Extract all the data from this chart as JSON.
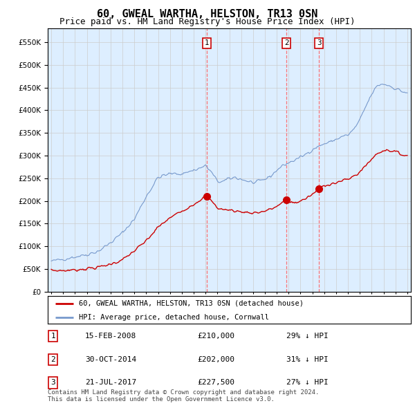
{
  "title": "60, GWEAL WARTHA, HELSTON, TR13 0SN",
  "subtitle": "Price paid vs. HM Land Registry's House Price Index (HPI)",
  "title_fontsize": 11,
  "subtitle_fontsize": 9,
  "yticks": [
    0,
    50000,
    100000,
    150000,
    200000,
    250000,
    300000,
    350000,
    400000,
    450000,
    500000,
    550000
  ],
  "ylim": [
    0,
    580000
  ],
  "xlim_start": 1994.7,
  "xlim_end": 2025.3,
  "grid_color": "#cccccc",
  "bg_color": "#ddeeff",
  "red_line_color": "#cc0000",
  "blue_line_color": "#7799cc",
  "vline_color": "#ff6666",
  "marker_color": "#cc0000",
  "transactions": [
    {
      "label": "1",
      "date": 2008.12,
      "price": 210000,
      "desc": "15-FEB-2008",
      "pct": "29% ↓ HPI"
    },
    {
      "label": "2",
      "date": 2014.83,
      "price": 202000,
      "desc": "30-OCT-2014",
      "pct": "31% ↓ HPI"
    },
    {
      "label": "3",
      "date": 2017.55,
      "price": 227500,
      "desc": "21-JUL-2017",
      "pct": "27% ↓ HPI"
    }
  ],
  "legend_label_red": "60, GWEAL WARTHA, HELSTON, TR13 0SN (detached house)",
  "legend_label_blue": "HPI: Average price, detached house, Cornwall",
  "footnote": "Contains HM Land Registry data © Crown copyright and database right 2024.\nThis data is licensed under the Open Government Licence v3.0."
}
